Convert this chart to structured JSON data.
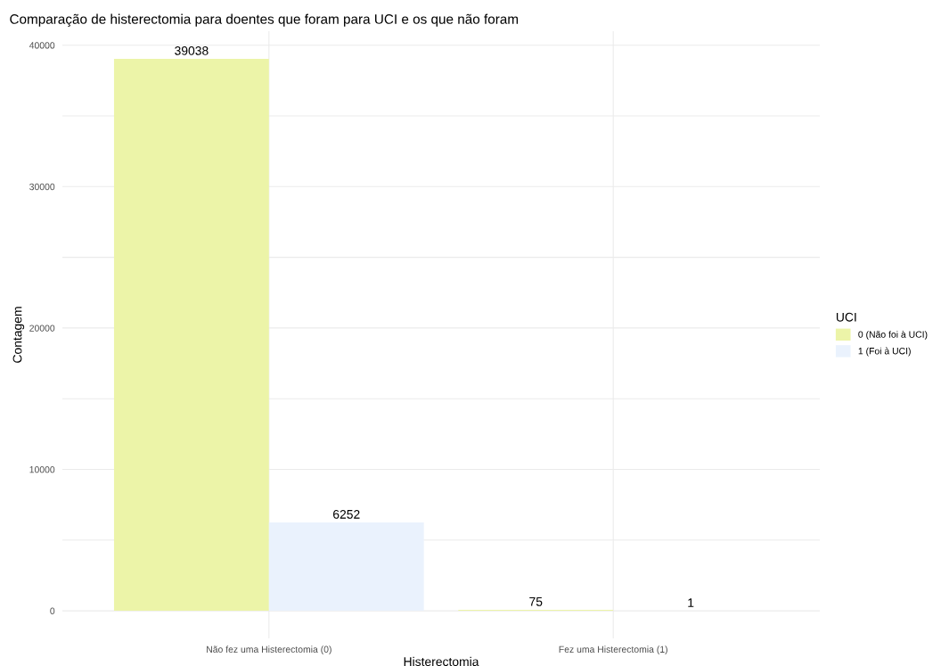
{
  "chart_data": {
    "type": "bar",
    "title": "Comparação de histerectomia para doentes que foram para UCI e os que não foram",
    "xlabel": "Histerectomia",
    "ylabel": "Contagem",
    "legend_title": "UCI",
    "categories": [
      "Não fez uma Histerectomia (0)",
      "Fez uma Histerectomia (1)"
    ],
    "series": [
      {
        "name": "0 (Não foi à UCI)",
        "color": "#ecf4a8",
        "values": [
          39038,
          75
        ]
      },
      {
        "name": "1 (Foi à UCI)",
        "color": "#eaf2fd",
        "values": [
          6252,
          1
        ]
      }
    ],
    "ylim": [
      -1950,
      40990
    ],
    "yticks": [
      0,
      {
        "value": 5000,
        "label": null
      },
      10000,
      {
        "value": 15000,
        "label": null
      },
      20000,
      {
        "value": 25000,
        "label": null
      },
      30000,
      {
        "value": 35000,
        "label": null
      },
      40000
    ],
    "grid": true,
    "legend": "right",
    "data_labels": true
  }
}
